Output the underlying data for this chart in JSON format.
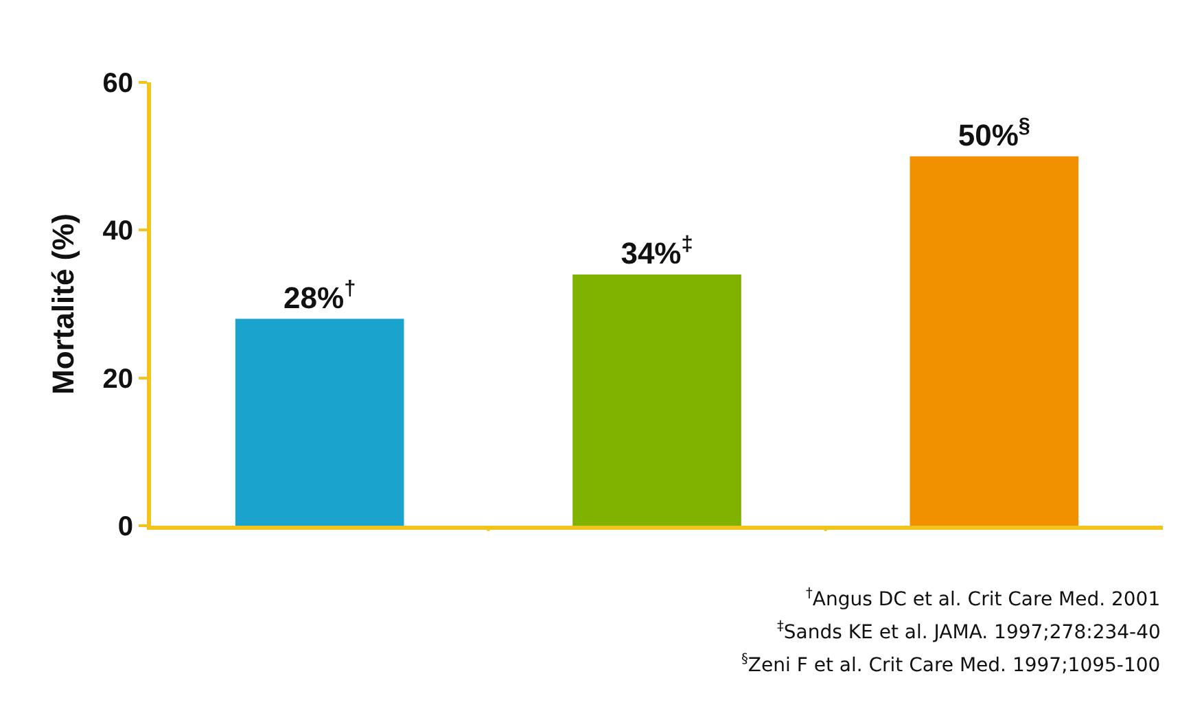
{
  "chart_data": {
    "type": "bar",
    "ylabel": "Mortalité (%)",
    "categories": [
      null,
      null,
      null
    ],
    "values": [
      28,
      34,
      50
    ],
    "value_labels": [
      "28%$^{†}$",
      "34%$^{‡}$",
      "50%$^{§}$"
    ],
    "colors": [
      "#1aa3cc",
      "#7fb300",
      "#f29100"
    ],
    "ylim": [
      0,
      60
    ],
    "yticks": [
      0,
      20,
      40,
      60
    ],
    "annotations": [
      "$^{†}$Angus DC et al. Crit Care Med. 2001",
      "$^{‡}$Sands KE et al. JAMA. 1997;278:234-40",
      "$^{§}$Zeni F et al. Crit Care Med. 1997;1095-100"
    ]
  }
}
